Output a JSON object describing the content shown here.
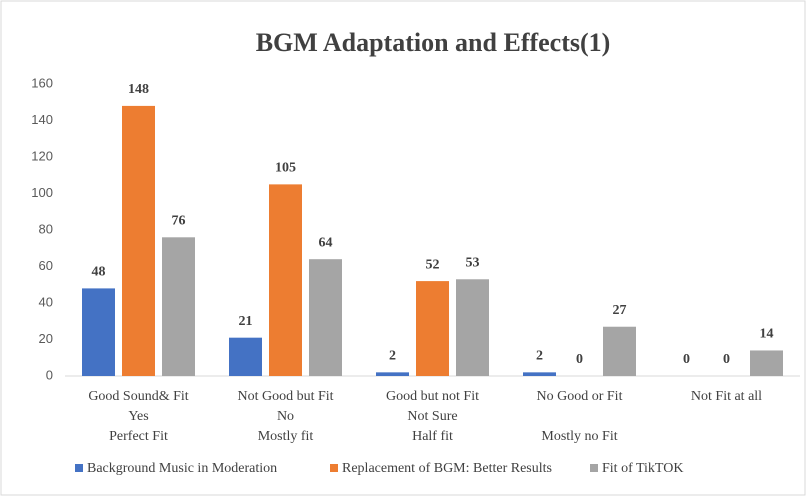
{
  "chart_data": {
    "type": "bar",
    "title": "BGM Adaptation and Effects(1)",
    "categories": [
      [
        "Good Sound& Fit",
        "Yes",
        "Perfect Fit"
      ],
      [
        "Not Good but Fit",
        "No",
        "Mostly fit"
      ],
      [
        "Good but not Fit",
        "Not Sure",
        "Half fit"
      ],
      [
        "No Good or Fit",
        null,
        "Mostly no Fit"
      ],
      [
        "Not Fit at all",
        null,
        null
      ]
    ],
    "series": [
      {
        "name": "Background Music in Moderation",
        "color": "#4472c4",
        "values": [
          48,
          21,
          2,
          2,
          0
        ]
      },
      {
        "name": "Replacement of BGM: Better Results",
        "color": "#ed7d31",
        "values": [
          148,
          105,
          52,
          0,
          0
        ]
      },
      {
        "name": "Fit of TikTOK",
        "color": "#a5a5a5",
        "values": [
          76,
          64,
          53,
          27,
          14
        ]
      }
    ],
    "ylim": [
      0,
      160
    ],
    "yticks": [
      0,
      20,
      40,
      60,
      80,
      100,
      120,
      140,
      160
    ],
    "grid": false,
    "legend": "bottom"
  }
}
